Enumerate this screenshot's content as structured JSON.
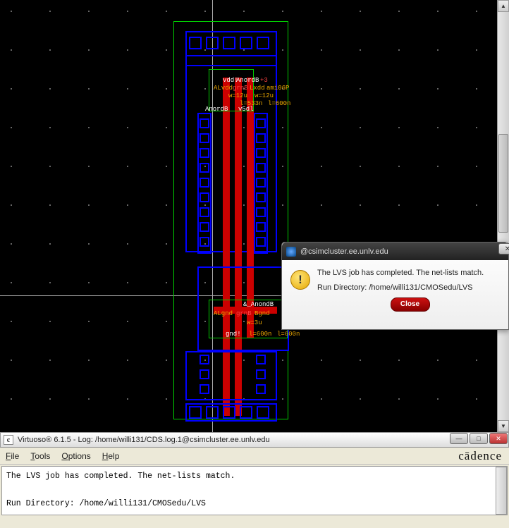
{
  "dialog": {
    "title": "@csimcluster.ee.unlv.edu",
    "message1": "The LVS job has completed. The net-lists match.",
    "message2": "Run Directory: /home/willi131/CMOSedu/LVS",
    "close_label": "Close"
  },
  "virtuoso": {
    "title": "Virtuoso® 6.1.5 - Log: /home/willi131/CDS.log.1@csimcluster.ee.unlv.edu",
    "menu_file": "File",
    "menu_tools": "Tools",
    "menu_options": "Options",
    "menu_help": "Help",
    "brand": "cādence",
    "log_line1": "The LVS job has completed. The net-lists match.",
    "log_line2": "",
    "log_line3": "Run Directory: /home/willi131/CMOSedu/LVS"
  },
  "layout": {
    "top_labels": {
      "vdd": "vdd!",
      "anordB": "AnordB",
      "plus3": "+3",
      "Lvdd": "ALvdd",
      "grnB": "grnB",
      "lxdd": "Lxdd",
      "ami06P": "ami06P",
      "w12u_a": "w=12u",
      "w12u_b": "w=12u",
      "anordB2": "AnordB",
      "l533n": "l=533n",
      "l600n": "l=600n",
      "v5d": "v5dl"
    },
    "mid_labels": {
      "anondB": "&_AnondB",
      "gnd": "ALgnd",
      "grnB2": "grnB",
      "Bgnd": "Bgnd",
      "w3u": "w=3u",
      "l600n": "l=600n",
      "l600n2": "l=600n",
      "gndExcl": "gnd!"
    },
    "colors": {
      "green": "#00cc00",
      "blue": "#0000ff",
      "red": "#ff0000",
      "orange": "#eeaa00",
      "bg": "#000000"
    }
  }
}
